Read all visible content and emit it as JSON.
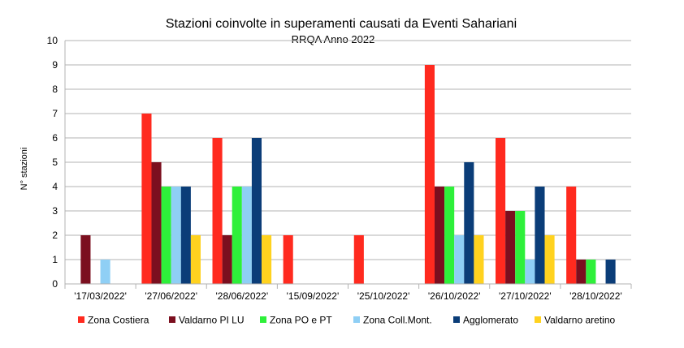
{
  "chart_data": {
    "type": "bar",
    "title": "Stazioni coinvolte in superamenti causati da  Eventi Sahariani",
    "subtitle": "RRQA Anno 2022",
    "xlabel": "",
    "ylabel": "N° stazioni",
    "ylim": [
      0,
      10
    ],
    "yticks": [
      "0",
      "1",
      "2",
      "3",
      "4",
      "5",
      "6",
      "7",
      "8",
      "9",
      "10"
    ],
    "grid": true,
    "legend_position": "bottom",
    "categories": [
      "'17/03/2022'",
      "'27/06/2022'",
      "'28/06/2022'",
      "'15/09/2022'",
      "'25/10/2022'",
      "'26/10/2022'",
      "'27/10/2022'",
      "'28/10/2022'"
    ],
    "series": [
      {
        "name": "Zona Costiera",
        "color": "#ff2a1f",
        "values": [
          0,
          7,
          6,
          2,
          2,
          9,
          6,
          4
        ]
      },
      {
        "name": "Valdarno PI LU",
        "color": "#7b0f1f",
        "values": [
          2,
          5,
          2,
          0,
          0,
          4,
          3,
          1
        ]
      },
      {
        "name": "Zona PO e PT",
        "color": "#2ef03a",
        "values": [
          0,
          4,
          4,
          0,
          0,
          4,
          3,
          1
        ]
      },
      {
        "name": "Zona Coll.Mont.",
        "color": "#8fcff5",
        "values": [
          1,
          4,
          4,
          0,
          0,
          2,
          1,
          0
        ]
      },
      {
        "name": "Agglomerato",
        "color": "#0b3d78",
        "values": [
          0,
          4,
          6,
          0,
          0,
          5,
          4,
          1
        ]
      },
      {
        "name": "Valdarno aretino",
        "color": "#ffd21f",
        "values": [
          0,
          2,
          2,
          0,
          0,
          2,
          2,
          0
        ]
      }
    ]
  }
}
